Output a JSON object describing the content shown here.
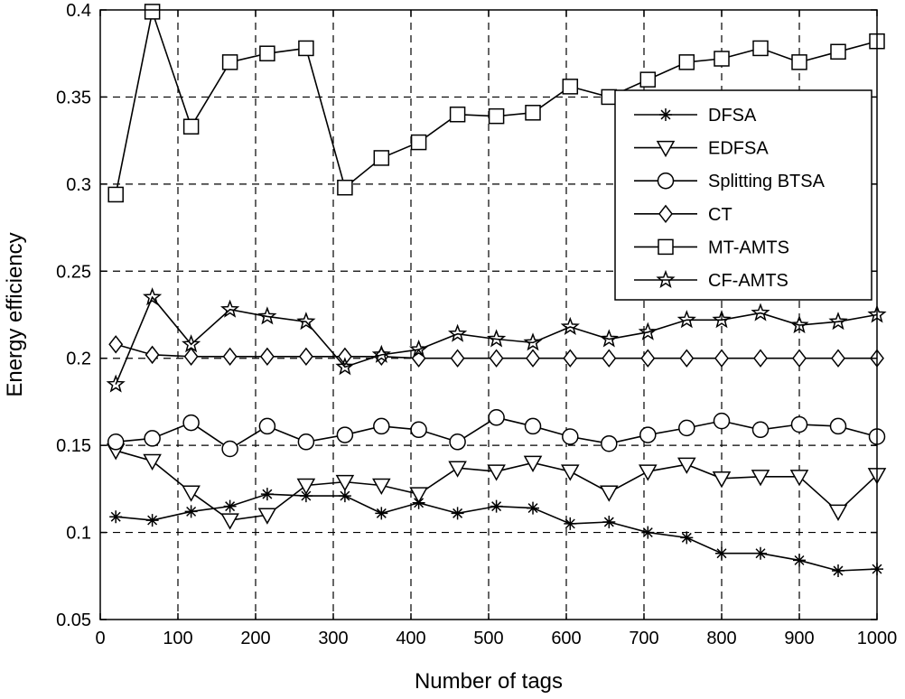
{
  "chart_data": {
    "type": "line",
    "xlabel": "Number of tags",
    "ylabel": "Energy efficiency",
    "xlim": [
      0,
      1000
    ],
    "ylim": [
      0.05,
      0.4
    ],
    "xticks": [
      "0",
      "100",
      "200",
      "300",
      "400",
      "500",
      "600",
      "700",
      "800",
      "900",
      "1000"
    ],
    "yticks": [
      "0.05",
      "0.1",
      "0.15",
      "0.2",
      "0.25",
      "0.3",
      "0.35",
      "0.4"
    ],
    "grid": true,
    "legend_position": "upper-right",
    "x": [
      20,
      67,
      117,
      167,
      215,
      265,
      315,
      362,
      410,
      460,
      510,
      557,
      605,
      655,
      705,
      755,
      800,
      850,
      900,
      950,
      1000
    ],
    "series": [
      {
        "name": "DFSA",
        "marker": "asterisk",
        "values": [
          0.109,
          0.107,
          0.112,
          0.115,
          0.122,
          0.121,
          0.121,
          0.111,
          0.117,
          0.111,
          0.115,
          0.114,
          0.105,
          0.106,
          0.1,
          0.097,
          0.088,
          0.088,
          0.084,
          0.078,
          0.079
        ]
      },
      {
        "name": "EDFSA",
        "marker": "triangle-down",
        "values": [
          0.147,
          0.141,
          0.123,
          0.107,
          0.11,
          0.127,
          0.129,
          0.127,
          0.122,
          0.137,
          0.135,
          0.14,
          0.135,
          0.123,
          0.135,
          0.139,
          0.131,
          0.132,
          0.132,
          0.112,
          0.133
        ]
      },
      {
        "name": "Splitting BTSA",
        "marker": "circle",
        "values": [
          0.152,
          0.154,
          0.163,
          0.148,
          0.161,
          0.152,
          0.156,
          0.161,
          0.159,
          0.152,
          0.166,
          0.161,
          0.155,
          0.151,
          0.156,
          0.16,
          0.164,
          0.159,
          0.162,
          0.161,
          0.155
        ]
      },
      {
        "name": "CT",
        "marker": "diamond",
        "values": [
          0.208,
          0.202,
          0.201,
          0.201,
          0.201,
          0.201,
          0.201,
          0.201,
          0.2,
          0.2,
          0.2,
          0.2,
          0.2,
          0.2,
          0.2,
          0.2,
          0.2,
          0.2,
          0.2,
          0.2,
          0.2
        ]
      },
      {
        "name": "MT-AMTS",
        "marker": "square",
        "values": [
          0.294,
          0.399,
          0.333,
          0.37,
          0.375,
          0.378,
          0.298,
          0.315,
          0.324,
          0.34,
          0.339,
          0.341,
          0.356,
          0.35,
          0.36,
          0.37,
          0.372,
          0.378,
          0.37,
          0.376,
          0.382
        ]
      },
      {
        "name": "CF-AMTS",
        "marker": "star",
        "values": [
          0.185,
          0.235,
          0.208,
          0.228,
          0.224,
          0.221,
          0.195,
          0.202,
          0.205,
          0.214,
          0.211,
          0.209,
          0.218,
          0.211,
          0.215,
          0.222,
          0.222,
          0.226,
          0.219,
          0.221,
          0.225
        ]
      }
    ]
  }
}
